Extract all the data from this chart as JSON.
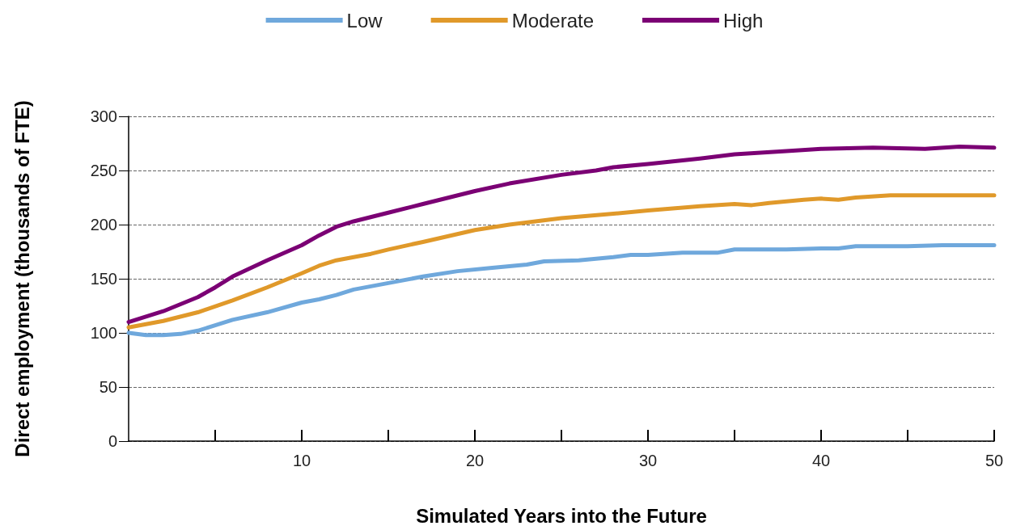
{
  "chart_data": {
    "type": "line",
    "xlabel": "Simulated Years into the Future",
    "ylabel": "Direct employment (thousands of FTE)",
    "xlim": [
      0,
      50
    ],
    "xticks": [
      {
        "value": 5,
        "label": null
      },
      10,
      {
        "value": 15,
        "label": null
      },
      20,
      {
        "value": 25,
        "label": null
      },
      30,
      {
        "value": 35,
        "label": null
      },
      40,
      {
        "value": 45,
        "label": null
      },
      50
    ],
    "ylim": [
      0,
      300
    ],
    "yticks": [
      0,
      50,
      100,
      150,
      200,
      250,
      300
    ],
    "grid": "y",
    "legend": "top",
    "marker": "none",
    "line_style": "solid",
    "series": [
      {
        "name": "Low",
        "color": "#6fa8dc",
        "x": [
          0,
          1,
          2,
          3,
          4,
          5,
          6,
          8,
          10,
          11,
          12,
          13,
          15,
          17,
          19,
          21,
          23,
          24,
          26,
          28,
          29,
          30,
          32,
          34,
          35,
          37,
          38,
          40,
          41,
          42,
          45,
          47,
          50
        ],
        "values": [
          100,
          98,
          98,
          99,
          102,
          107,
          112,
          119,
          128,
          131,
          135,
          140,
          146,
          152,
          157,
          160,
          163,
          166,
          167,
          170,
          172,
          172,
          174,
          174,
          177,
          177,
          177,
          178,
          178,
          180,
          180,
          181,
          181
        ]
      },
      {
        "name": "Moderate",
        "color": "#e0992a",
        "x": [
          0,
          2,
          4,
          6,
          8,
          10,
          11,
          12,
          14,
          15,
          17,
          20,
          22,
          25,
          28,
          30,
          33,
          35,
          36,
          37,
          39,
          40,
          41,
          42,
          44,
          47,
          50
        ],
        "values": [
          105,
          111,
          119,
          130,
          142,
          155,
          162,
          167,
          173,
          177,
          184,
          195,
          200,
          206,
          210,
          213,
          217,
          219,
          218,
          220,
          223,
          224,
          223,
          225,
          227,
          227,
          227
        ]
      },
      {
        "name": "High",
        "color": "#7b0074",
        "x": [
          0,
          2,
          4,
          5,
          6,
          8,
          10,
          11,
          12,
          13,
          15,
          17,
          20,
          22,
          25,
          27,
          28,
          30,
          33,
          35,
          38,
          40,
          43,
          46,
          48,
          50
        ],
        "values": [
          110,
          120,
          133,
          142,
          152,
          167,
          181,
          190,
          198,
          203,
          211,
          219,
          231,
          238,
          246,
          250,
          253,
          256,
          261,
          265,
          268,
          270,
          271,
          270,
          272,
          271
        ]
      }
    ]
  }
}
